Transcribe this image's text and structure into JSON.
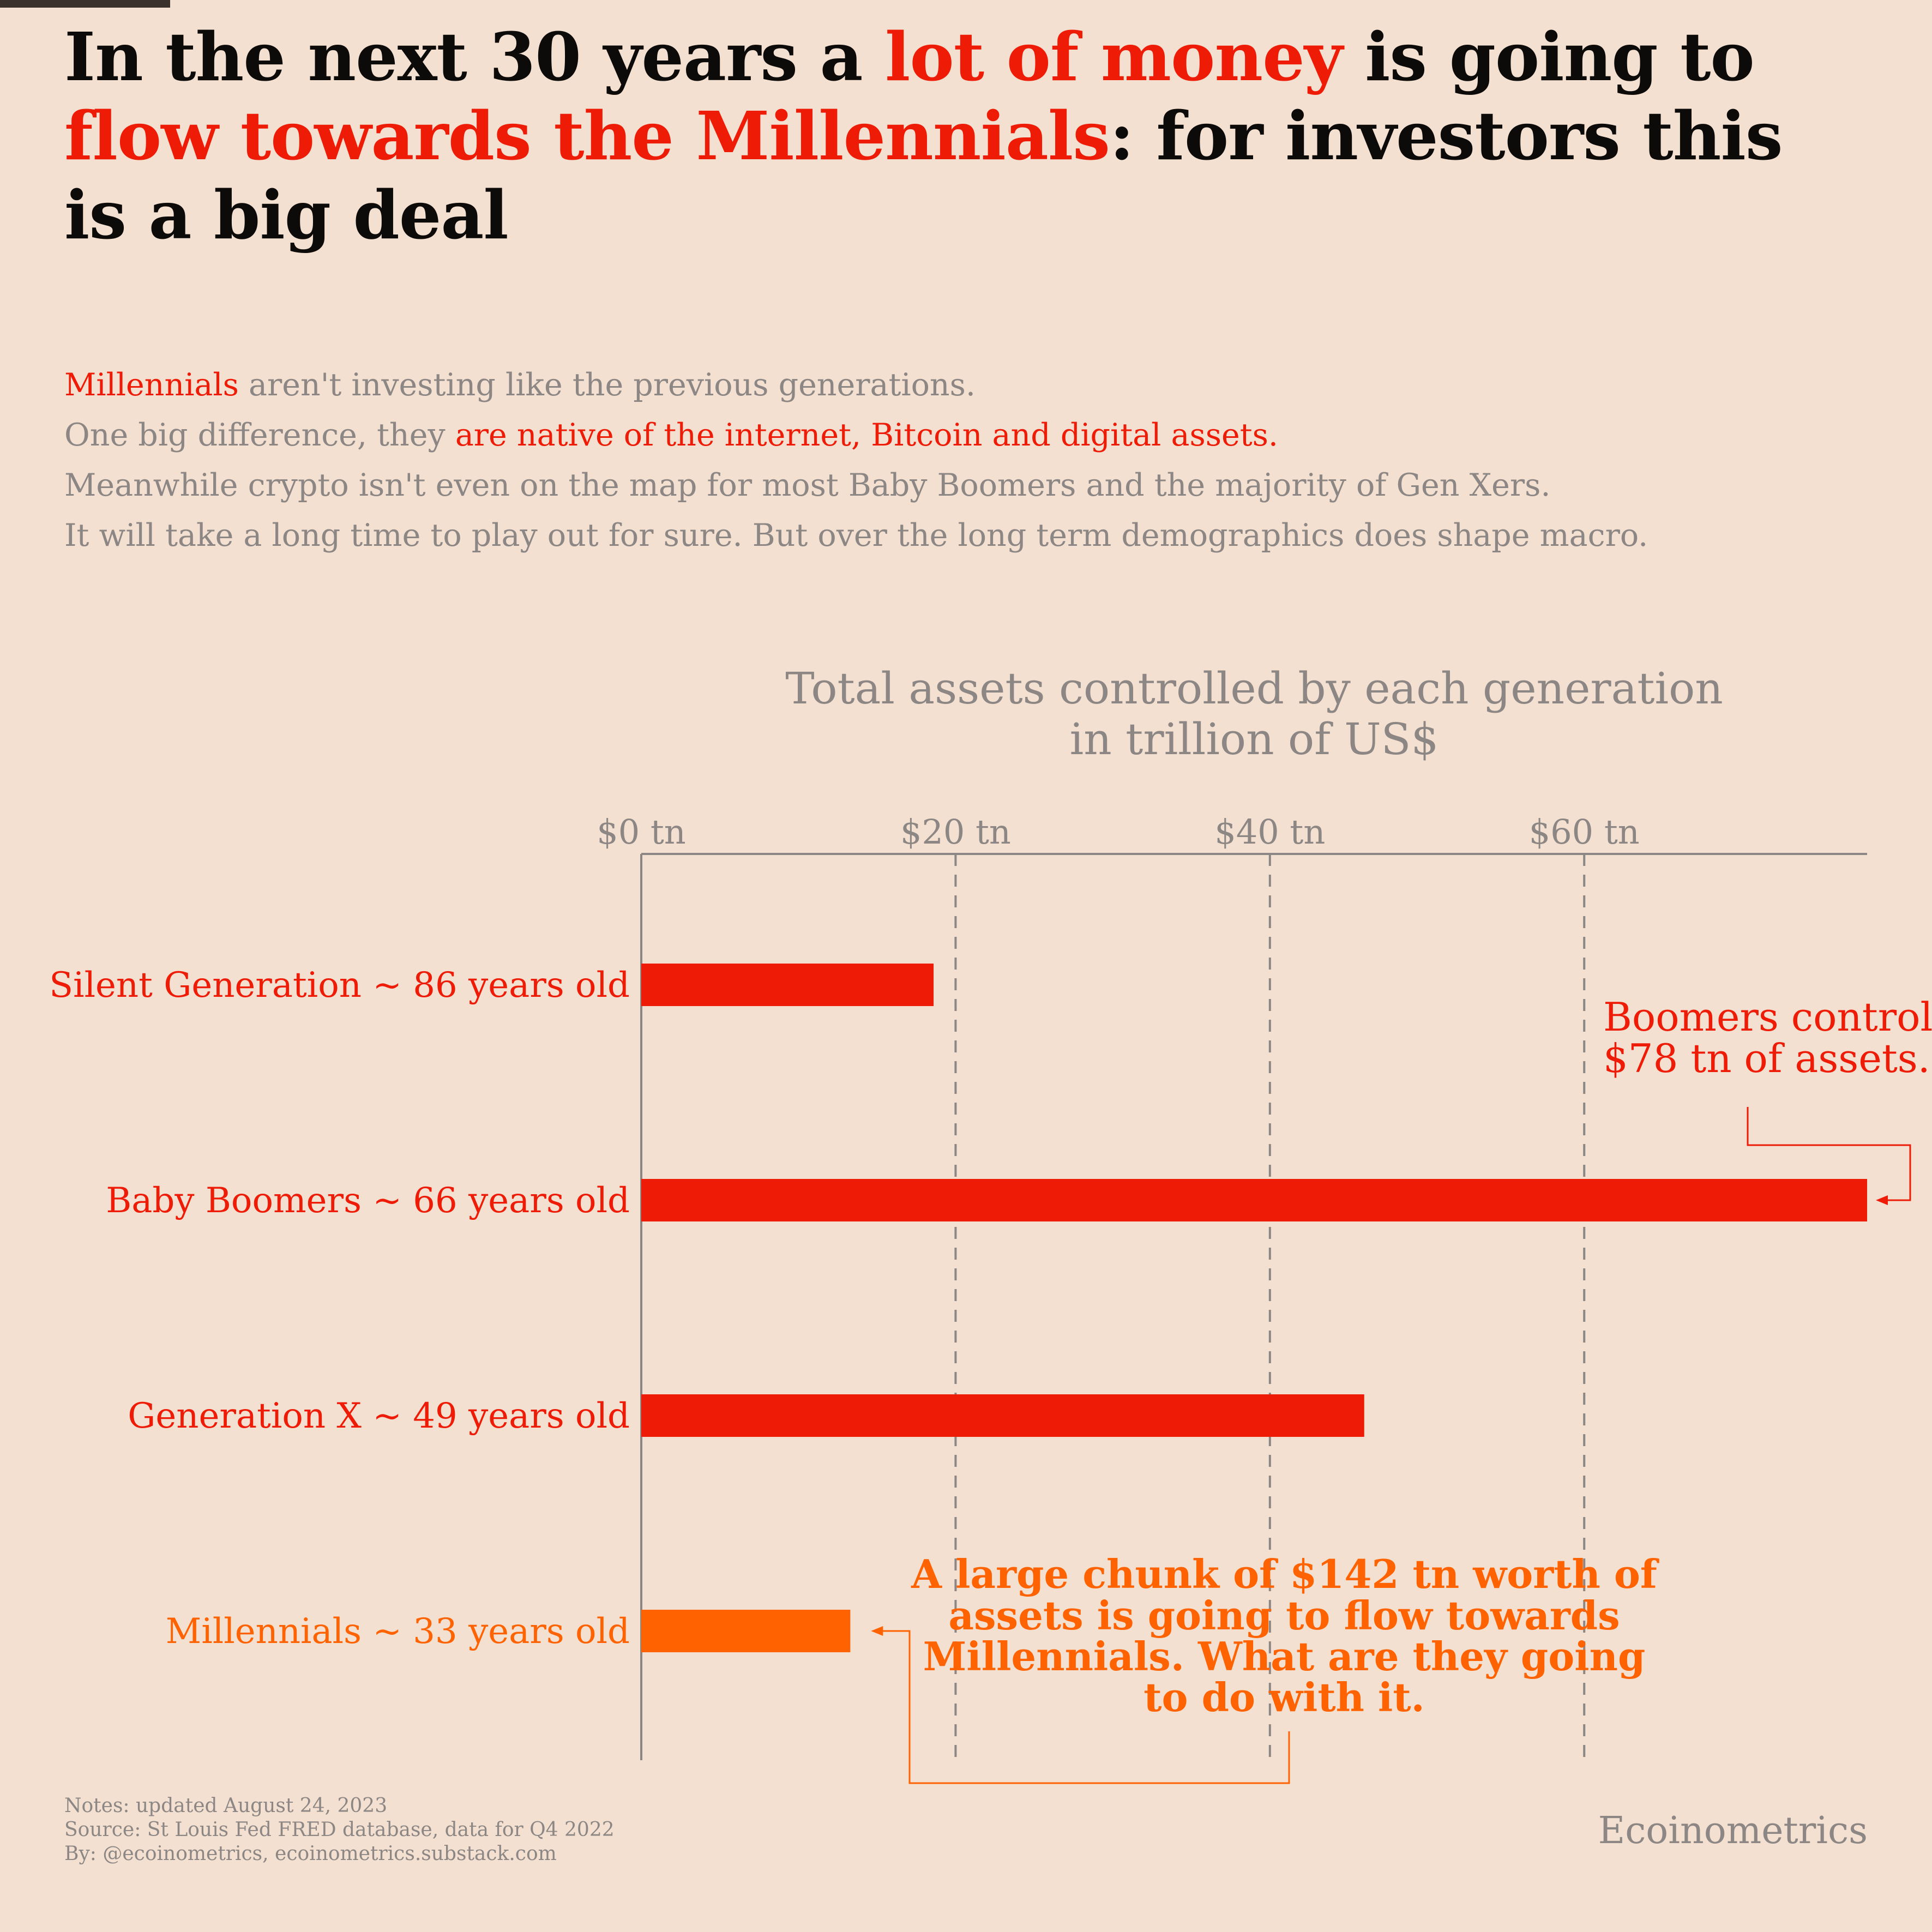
{
  "headline": {
    "part1": "In the next 30 years a ",
    "part2_highlight": "lot of money",
    "part3": " is going to ",
    "part4_highlight": "flow towards the Millennials",
    "part5": ": for investors this is a big deal"
  },
  "subtitle": {
    "line1_highlight": "Millennials",
    "line1_rest": " aren't investing like the previous generations.",
    "line2_start": "One big difference, they ",
    "line2_highlight": "are native of the internet, Bitcoin and digital assets.",
    "line3": "Meanwhile crypto isn't even on the map for most Baby Boomers and the majority of Gen Xers.",
    "line4": "It will take a long time to play out for sure. But over the long term demographics does shape macro."
  },
  "colors": {
    "background": "#f3e0d0",
    "red": "#ee1c07",
    "orange": "#ff6200",
    "gray_text": "#8c8684",
    "axis": "#8c8684",
    "title_text": "#0d0b0a"
  },
  "chart_data": {
    "type": "bar",
    "orientation": "horizontal",
    "title": "Total assets controlled by each generation",
    "subtitle": "in trillion of US$",
    "categories": [
      "Silent Generation ~ 86 years old",
      "Baby Boomers ~ 66 years old",
      "Generation X ~ 49 years old",
      "Millennials ~ 33 years old"
    ],
    "values": [
      18.6,
      78,
      46,
      13.3
    ],
    "bar_colors": [
      "#ee1c07",
      "#ee1c07",
      "#ee1c07",
      "#ff6200"
    ],
    "xlim": [
      0,
      78
    ],
    "xticks": [
      0,
      20,
      40,
      60
    ],
    "xtick_labels": [
      "$0 tn",
      "$20 tn",
      "$40 tn",
      "$60 tn"
    ],
    "grid": "vertical dashed",
    "annotations": [
      {
        "text": [
          "Boomers control",
          "$78 tn of assets."
        ],
        "color": "#ee1c07",
        "target_category": 1
      },
      {
        "text": [
          "A large chunk of $142 tn worth of",
          "assets is going to flow towards",
          "Millennials. What are they going",
          "to do with it."
        ],
        "color": "#ff6200",
        "target_category": 3
      }
    ]
  },
  "notes": {
    "line1": "Notes: updated August 24, 2023",
    "line2": "Source: St Louis Fed FRED database, data for Q4 2022",
    "line3": "By: @ecoinometrics, ecoinometrics.substack.com"
  },
  "brand": "Ecoinometrics"
}
